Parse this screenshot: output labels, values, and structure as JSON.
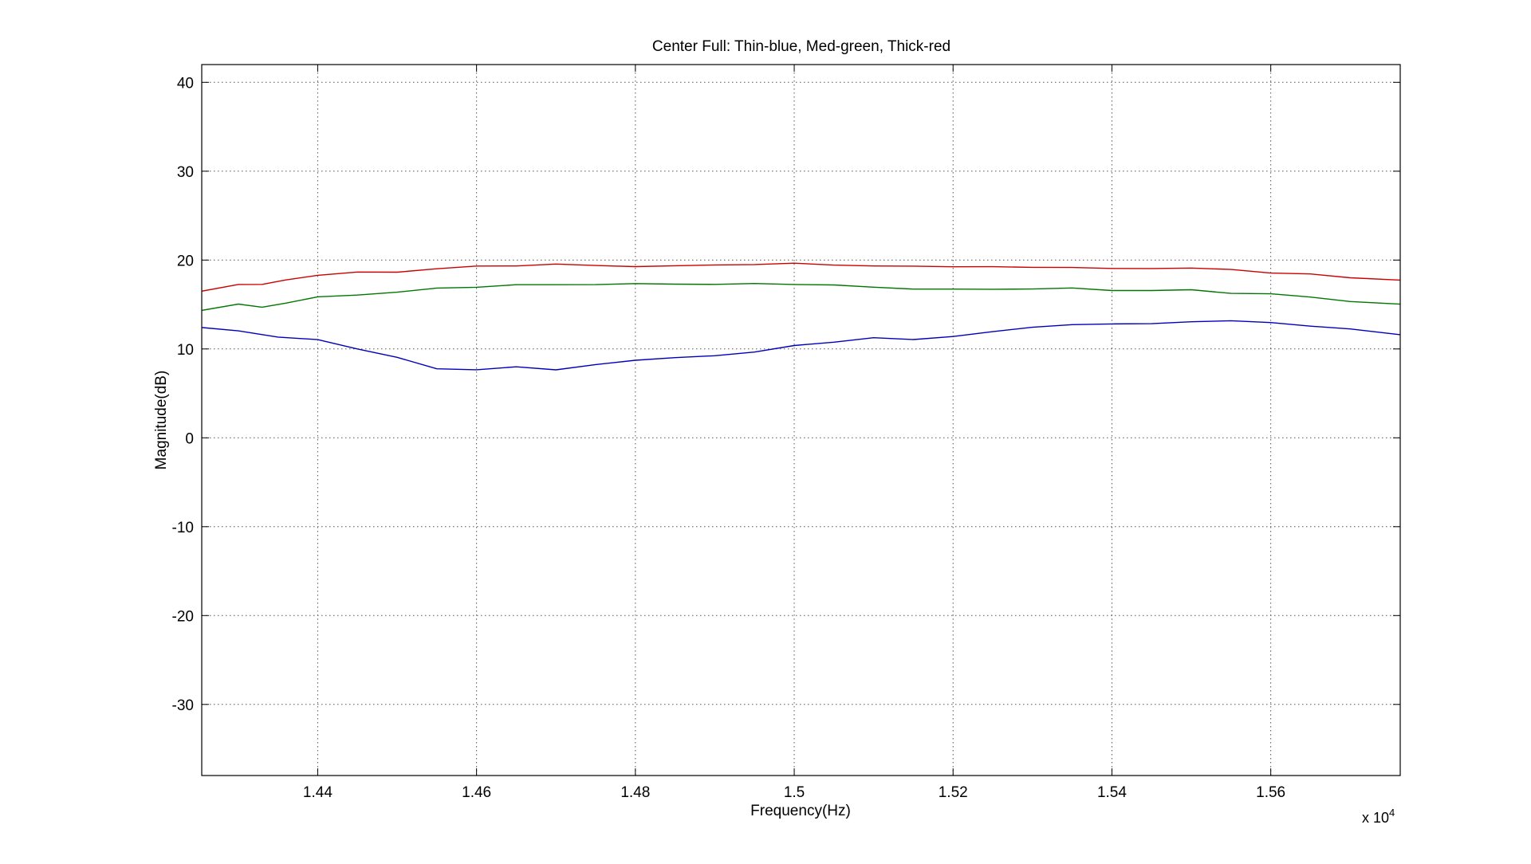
{
  "chart_data": {
    "type": "line",
    "title": "Center Full: Thin-blue, Med-green, Thick-red",
    "xlabel": "Frequency(Hz)",
    "ylabel": "Magnitude(dB)",
    "x_exponent_label": "x 10",
    "x_exponent_power": "4",
    "xlim": [
      14254,
      15763
    ],
    "ylim": [
      -38,
      42
    ],
    "x_ticks": [
      14400,
      14600,
      14800,
      15000,
      15200,
      15400,
      15600
    ],
    "x_tick_labels": [
      "1.44",
      "1.46",
      "1.48",
      "1.5",
      "1.52",
      "1.54",
      "1.56"
    ],
    "y_ticks": [
      40,
      30,
      20,
      10,
      0,
      -10,
      -20,
      -30
    ],
    "y_tick_labels": [
      "40",
      "30",
      "20",
      "10",
      "0",
      "-10",
      "-20",
      "-30"
    ],
    "grid": true,
    "legend": "none",
    "series": [
      {
        "color": "#cc0000",
        "x": [
          14254,
          14300,
          14330,
          14360,
          14400,
          14450,
          14500,
          14550,
          14600,
          14650,
          14700,
          14750,
          14800,
          14850,
          14900,
          14950,
          15000,
          15050,
          15100,
          15150,
          15200,
          15250,
          15300,
          15350,
          15400,
          15450,
          15500,
          15550,
          15600,
          15650,
          15700,
          15763
        ],
        "y": [
          16.5,
          17.3,
          17.2,
          17.8,
          18.3,
          18.6,
          18.7,
          19.0,
          19.3,
          19.4,
          19.5,
          19.4,
          19.3,
          19.3,
          19.5,
          19.5,
          19.6,
          19.5,
          19.3,
          19.3,
          19.3,
          19.2,
          19.2,
          19.2,
          19.0,
          19.1,
          19.1,
          18.9,
          18.6,
          18.4,
          18.0,
          17.8
        ]
      },
      {
        "color": "#007700",
        "x": [
          14254,
          14300,
          14330,
          14360,
          14400,
          14450,
          14500,
          14550,
          14600,
          14650,
          14700,
          14750,
          14800,
          14850,
          14900,
          14950,
          15000,
          15050,
          15100,
          15150,
          15200,
          15250,
          15300,
          15350,
          15400,
          15450,
          15500,
          15550,
          15600,
          15650,
          15700,
          15763
        ],
        "y": [
          14.4,
          15.0,
          14.7,
          15.2,
          15.8,
          16.1,
          16.4,
          16.8,
          17.0,
          17.2,
          17.2,
          17.3,
          17.3,
          17.3,
          17.3,
          17.3,
          17.3,
          17.2,
          16.9,
          16.8,
          16.7,
          16.7,
          16.8,
          16.8,
          16.6,
          16.6,
          16.6,
          16.3,
          16.2,
          15.8,
          15.4,
          15.0
        ]
      },
      {
        "color": "#0000bb",
        "x": [
          14254,
          14300,
          14350,
          14400,
          14450,
          14500,
          14550,
          14600,
          14650,
          14700,
          14750,
          14800,
          14850,
          14900,
          14950,
          15000,
          15050,
          15100,
          15150,
          15200,
          15250,
          15300,
          15350,
          15400,
          15450,
          15500,
          15550,
          15600,
          15650,
          15700,
          15763
        ],
        "y": [
          12.4,
          12.0,
          11.4,
          11.0,
          10.0,
          9.1,
          7.7,
          7.7,
          8.0,
          7.6,
          8.3,
          8.7,
          9.0,
          9.3,
          9.6,
          10.4,
          10.8,
          11.2,
          11.1,
          11.4,
          11.9,
          12.5,
          12.7,
          12.8,
          12.9,
          13.0,
          13.2,
          13.0,
          12.5,
          12.3,
          11.6
        ]
      }
    ]
  }
}
